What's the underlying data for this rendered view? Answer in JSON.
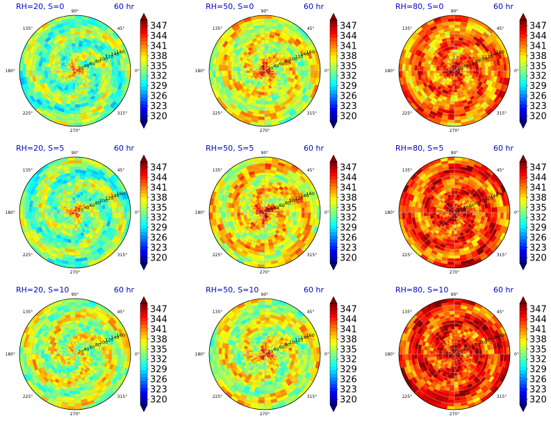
{
  "chart_data": {
    "type": "heatmap",
    "projection": "polar",
    "time_label": "60 hr",
    "angular_ticks": [
      "0°",
      "45°",
      "90°",
      "135°",
      "180°",
      "225°",
      "270°",
      "315°"
    ],
    "radial_ticks": [
      "20",
      "40",
      "60",
      "80",
      "100",
      "120",
      "140",
      "160"
    ],
    "radial_range": [
      0,
      180
    ],
    "colorbar": {
      "ticks": [
        "347",
        "344",
        "341",
        "338",
        "335",
        "332",
        "329",
        "326",
        "323",
        "320"
      ],
      "range": [
        320,
        349
      ],
      "colormap": "jet",
      "extend": "both"
    },
    "grid": true,
    "panels": [
      {
        "title": "RH=20, S=0",
        "mean": 334.5,
        "core": 343.0
      },
      {
        "title": "RH=50, S=0",
        "mean": 337.5,
        "core": 346.0
      },
      {
        "title": "RH=80, S=0",
        "mean": 342.0,
        "core": 348.0
      },
      {
        "title": "RH=20, S=5",
        "mean": 334.5,
        "core": 343.5
      },
      {
        "title": "RH=50, S=5",
        "mean": 338.5,
        "core": 347.0
      },
      {
        "title": "RH=80, S=5",
        "mean": 343.5,
        "core": 348.0
      },
      {
        "title": "RH=20, S=10",
        "mean": 336.5,
        "core": 338.0
      },
      {
        "title": "RH=50, S=10",
        "mean": 337.0,
        "core": 344.0
      },
      {
        "title": "RH=80, S=10",
        "mean": 344.0,
        "core": 348.0
      }
    ],
    "colors": {
      "title": "#0000cc",
      "grid": "#b8b8b8"
    }
  }
}
